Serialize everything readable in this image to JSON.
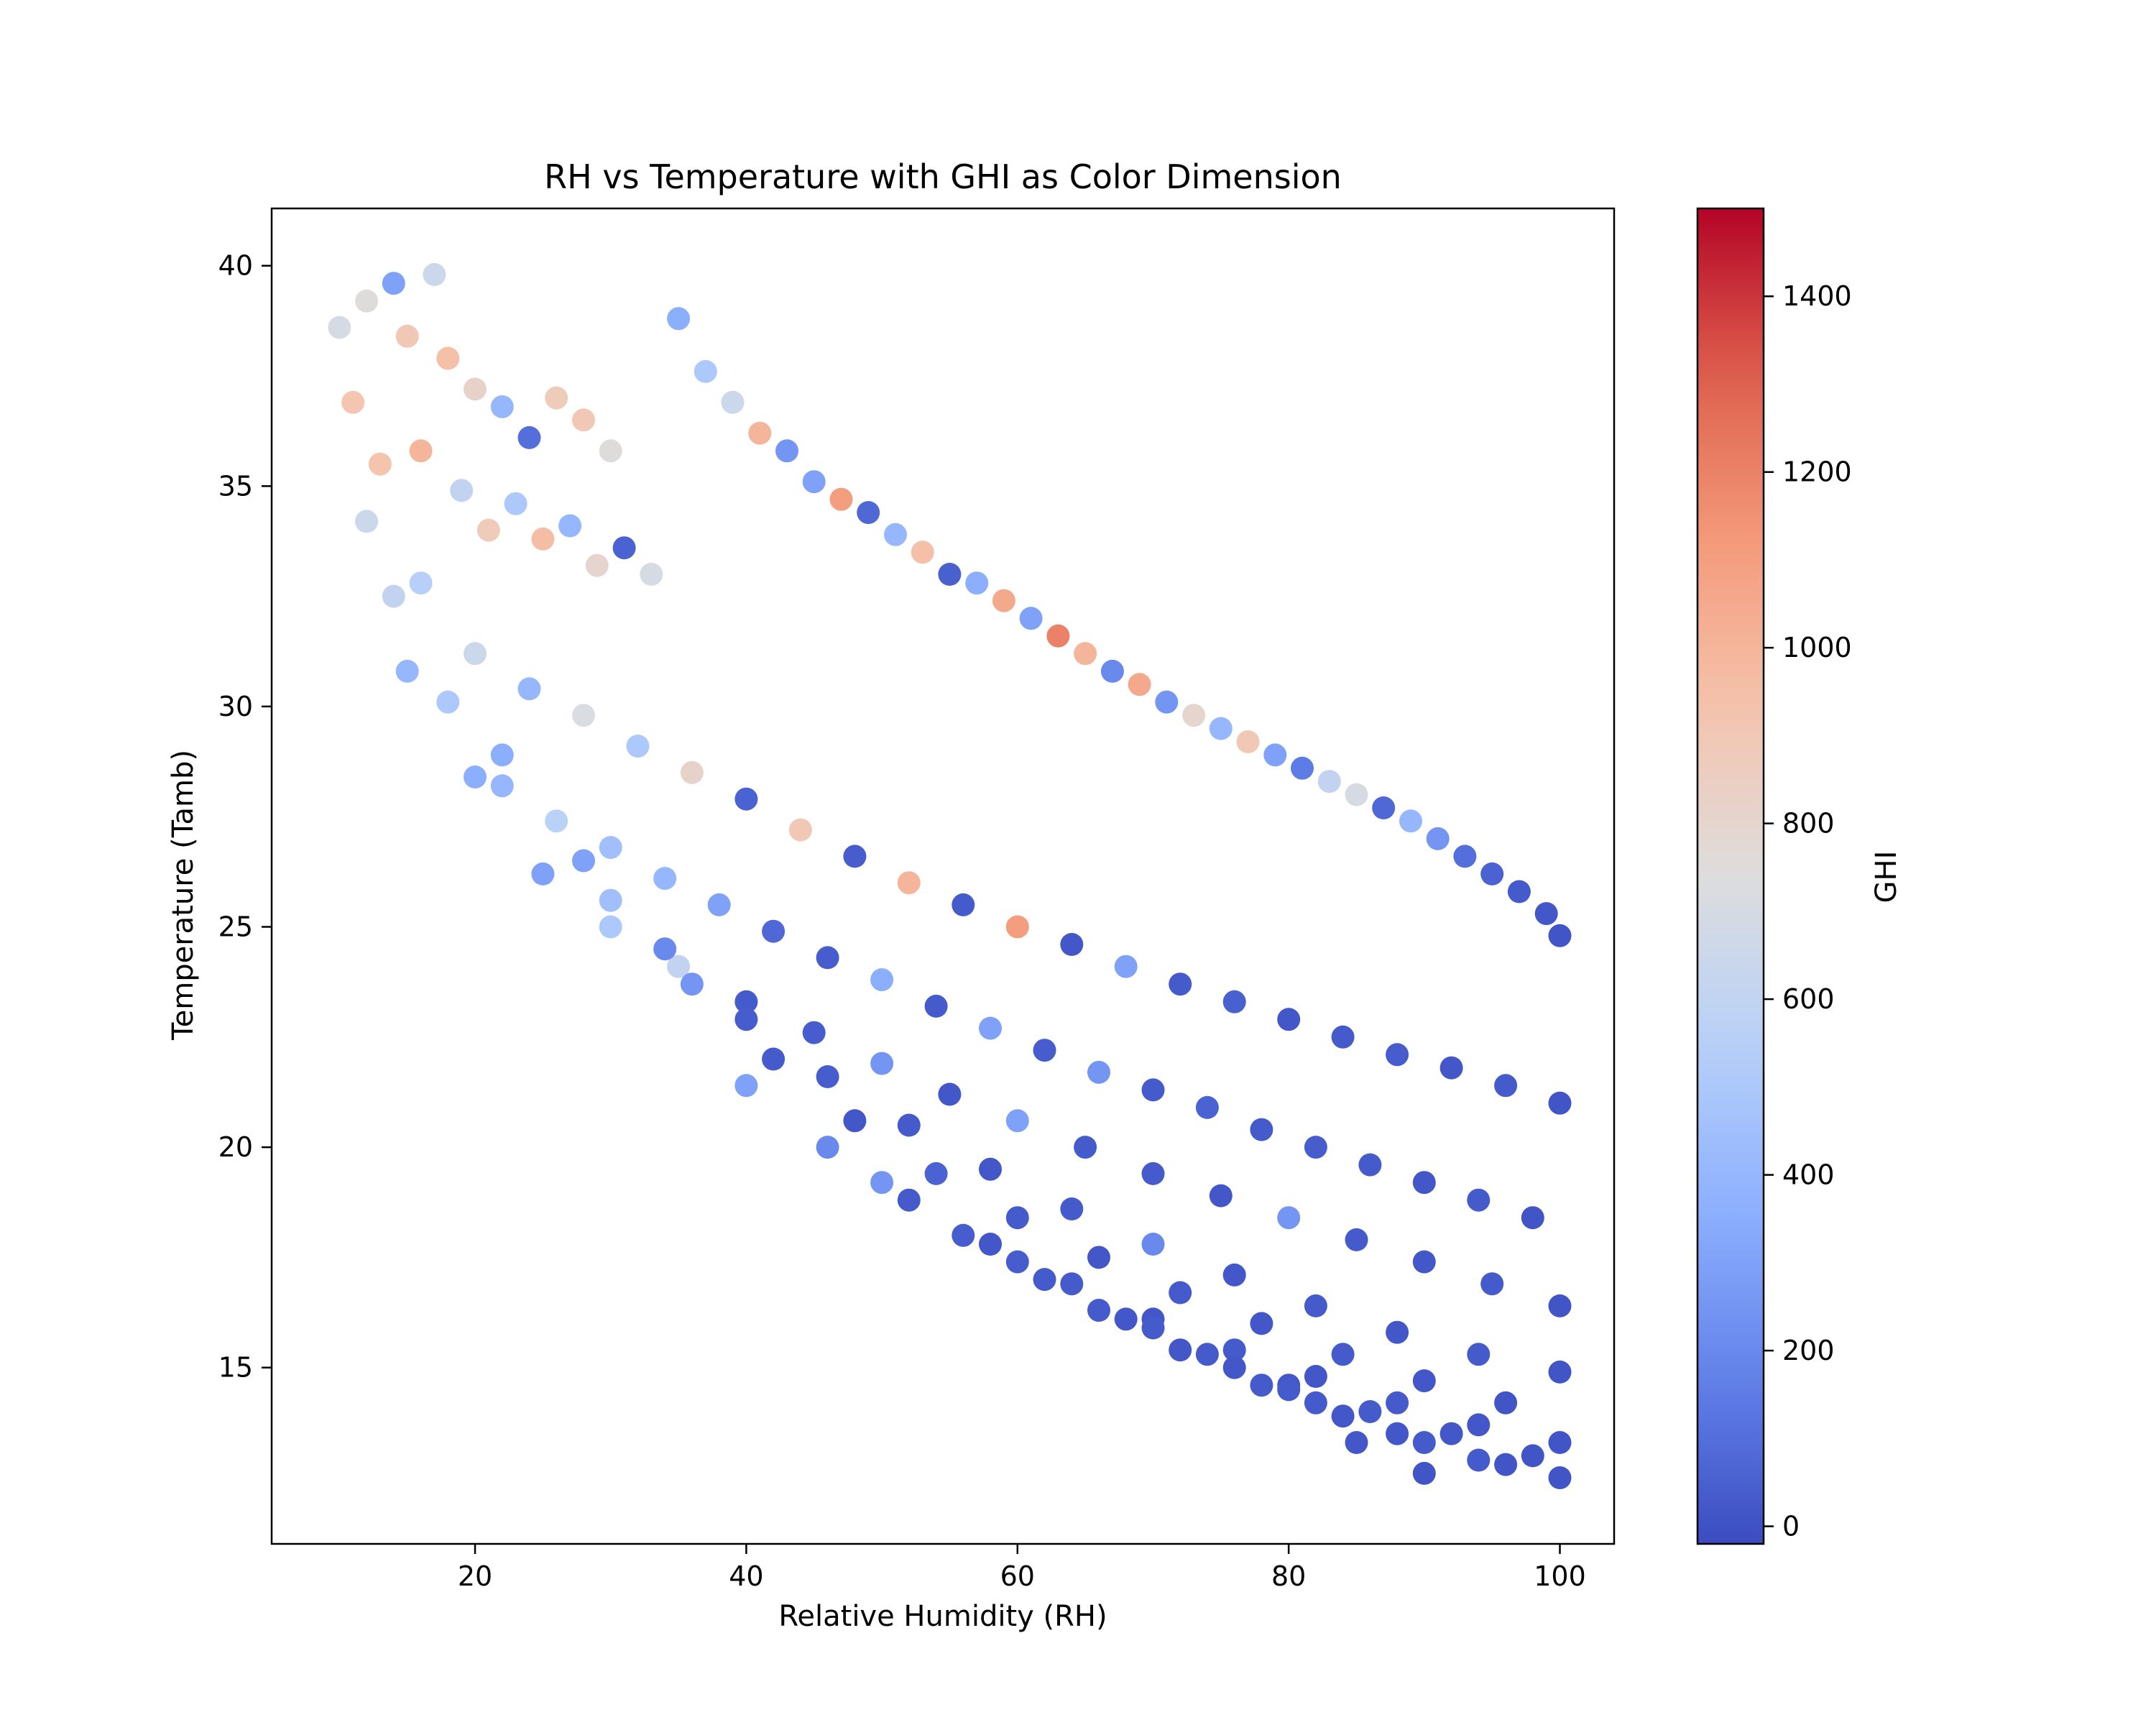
{
  "chart_data": {
    "type": "scatter",
    "title": "RH vs Temperature with GHI as Color Dimension",
    "xlabel": "Relative Humidity (RH)",
    "ylabel": "Temperature (Tamb)",
    "xlim": [
      5,
      104
    ],
    "ylim": [
      11,
      41.3
    ],
    "xticks": [
      20,
      40,
      60,
      80,
      100
    ],
    "yticks": [
      15,
      20,
      25,
      30,
      35,
      40
    ],
    "grid": false,
    "legend": "none",
    "colorbar": {
      "label": "GHI",
      "colormap": "coolwarm",
      "range": [
        -20,
        1500
      ],
      "ticks": [
        0,
        200,
        400,
        600,
        800,
        1000,
        1200,
        1400
      ]
    },
    "series": [
      {
        "x": [
          10,
          12,
          14,
          15,
          17,
          18,
          20,
          22,
          24,
          26,
          28,
          30,
          11,
          13,
          16,
          19,
          21,
          23,
          25,
          27,
          29,
          31,
          33,
          35,
          37,
          39,
          41,
          43,
          45,
          47,
          49,
          51,
          53,
          55,
          57,
          59,
          61,
          63,
          65,
          67,
          69,
          71,
          73,
          75,
          77,
          79,
          81,
          83,
          85,
          87,
          89,
          91,
          93,
          95,
          97,
          99,
          100,
          12,
          16,
          20,
          24,
          28,
          32,
          36,
          40,
          44,
          48,
          52,
          56,
          60,
          64,
          68,
          72,
          76,
          80,
          84,
          88,
          92,
          96,
          100,
          14,
          18,
          22,
          26,
          30,
          34,
          38,
          42,
          46,
          50,
          54,
          58,
          62,
          66,
          70,
          74,
          78,
          82,
          86,
          90,
          94,
          98,
          15,
          20,
          25,
          30,
          35,
          40,
          45,
          50,
          55,
          60,
          65,
          70,
          75,
          80,
          85,
          90,
          95,
          100,
          22,
          28,
          34,
          40,
          46,
          52,
          58,
          64,
          70,
          76,
          82,
          88,
          94,
          100,
          30,
          36,
          42,
          48,
          54,
          60,
          66,
          72,
          78,
          84,
          90,
          96,
          40,
          46,
          52,
          58,
          64,
          70,
          76,
          82,
          88,
          94,
          100,
          50,
          56,
          62,
          68,
          74,
          80,
          86,
          92,
          98,
          60,
          66,
          72,
          78,
          84,
          90,
          96,
          70,
          76,
          82,
          88,
          94,
          100,
          80,
          85,
          90
        ],
        "y": [
          38.6,
          39.2,
          39.6,
          38.4,
          39.8,
          37.9,
          37.2,
          36.8,
          36.1,
          37.0,
          36.5,
          35.8,
          36.9,
          35.5,
          35.8,
          34.9,
          34.0,
          34.6,
          33.8,
          34.1,
          33.2,
          33.6,
          33.0,
          38.8,
          37.6,
          36.9,
          36.2,
          35.8,
          35.1,
          34.7,
          34.4,
          33.9,
          33.5,
          33.0,
          32.8,
          32.4,
          32.0,
          31.6,
          31.2,
          30.8,
          30.5,
          30.1,
          29.8,
          29.5,
          29.2,
          28.9,
          28.6,
          28.3,
          28.0,
          27.7,
          27.4,
          27.0,
          26.6,
          26.2,
          25.8,
          25.3,
          24.8,
          34.2,
          32.8,
          31.2,
          30.4,
          29.8,
          29.1,
          28.5,
          27.9,
          27.2,
          26.6,
          26.0,
          25.5,
          25.0,
          24.6,
          24.1,
          23.7,
          23.3,
          22.9,
          22.5,
          22.1,
          21.8,
          21.4,
          21.0,
          32.5,
          30.1,
          28.2,
          27.4,
          26.8,
          26.1,
          25.5,
          24.9,
          24.3,
          23.8,
          23.2,
          22.7,
          22.2,
          21.7,
          21.3,
          20.9,
          20.4,
          20.0,
          19.6,
          19.2,
          18.8,
          18.4,
          30.8,
          28.4,
          26.2,
          25.0,
          24.1,
          23.3,
          22.6,
          21.9,
          21.2,
          20.6,
          20.0,
          19.4,
          18.9,
          18.4,
          17.9,
          17.4,
          16.9,
          16.4,
          28.9,
          26.5,
          24.5,
          22.9,
          21.6,
          20.5,
          19.5,
          18.6,
          17.8,
          17.1,
          16.4,
          15.8,
          15.3,
          14.9,
          25.6,
          23.7,
          22.0,
          20.6,
          19.4,
          18.4,
          17.5,
          16.7,
          16.0,
          15.3,
          14.7,
          14.2,
          21.4,
          20.0,
          18.8,
          17.8,
          16.9,
          16.1,
          15.4,
          14.8,
          14.2,
          13.7,
          13.3,
          19.2,
          18.0,
          17.0,
          16.1,
          15.3,
          14.6,
          14.0,
          13.5,
          13.0,
          17.4,
          16.3,
          15.4,
          14.6,
          13.9,
          13.3,
          12.8,
          15.9,
          15.0,
          14.2,
          13.5,
          12.9,
          12.5,
          14.5,
          13.3,
          12.6
        ],
        "c": [
          700,
          750,
          300,
          900,
          650,
          950,
          820,
          400,
          100,
          880,
          900,
          750,
          920,
          930,
          1000,
          600,
          880,
          500,
          960,
          400,
          800,
          60,
          700,
          350,
          500,
          650,
          1000,
          250,
          300,
          1100,
          80,
          400,
          950,
          50,
          350,
          1050,
          300,
          1200,
          1000,
          200,
          1050,
          250,
          800,
          400,
          900,
          300,
          150,
          600,
          700,
          80,
          400,
          250,
          100,
          60,
          30,
          20,
          10,
          650,
          550,
          650,
          400,
          720,
          500,
          820,
          60,
          900,
          40,
          1000,
          30,
          1100,
          20,
          300,
          30,
          50,
          20,
          30,
          40,
          20,
          30,
          10,
          600,
          500,
          400,
          560,
          450,
          400,
          300,
          80,
          40,
          350,
          30,
          300,
          40,
          250,
          30,
          60,
          30,
          40,
          30,
          20,
          30,
          10,
          400,
          350,
          300,
          500,
          600,
          30,
          40,
          250,
          20,
          300,
          30,
          30,
          20,
          250,
          30,
          20,
          30,
          10,
          350,
          300,
          200,
          40,
          40,
          30,
          20,
          30,
          200,
          20,
          30,
          20,
          30,
          10,
          450,
          250,
          30,
          20,
          60,
          30,
          20,
          30,
          20,
          30,
          20,
          10,
          300,
          200,
          30,
          20,
          30,
          20,
          30,
          20,
          30,
          20,
          10,
          250,
          40,
          30,
          20,
          30,
          20,
          30,
          20,
          10,
          40,
          30,
          20,
          30,
          20,
          30,
          10,
          30,
          20,
          30,
          20,
          30,
          10,
          30,
          20,
          10
        ]
      }
    ]
  }
}
